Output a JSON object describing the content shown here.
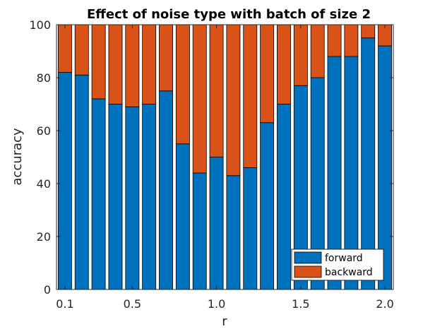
{
  "chart_data": {
    "type": "bar",
    "stacked": true,
    "title": "Effect of noise type with batch of size 2",
    "xlabel": "r",
    "ylabel": "accuracy",
    "x": [
      0.1,
      0.2,
      0.3,
      0.4,
      0.5,
      0.6,
      0.7,
      0.8,
      0.9,
      1.0,
      1.1,
      1.2,
      1.3,
      1.4,
      1.5,
      1.6,
      1.7,
      1.8,
      1.9,
      2.0
    ],
    "xlim": [
      0.05,
      2.05
    ],
    "ylim": [
      0,
      100
    ],
    "xticks": [
      "0.1",
      "0.5",
      "1.0",
      "1.5",
      "2.0"
    ],
    "xtick_values": [
      0.1,
      0.5,
      1.0,
      1.5,
      2.0
    ],
    "yticks": [
      "0",
      "20",
      "40",
      "60",
      "80",
      "100"
    ],
    "ytick_values": [
      0,
      20,
      40,
      60,
      80,
      100
    ],
    "series": [
      {
        "name": "forward",
        "color": "#0072BD",
        "values": [
          82,
          81,
          72,
          70,
          69,
          70,
          75,
          55,
          44,
          50,
          43,
          46,
          63,
          70,
          77,
          80,
          88,
          88,
          95,
          92
        ]
      },
      {
        "name": "backward",
        "color": "#D95319",
        "values": [
          18,
          19,
          28,
          30,
          31,
          30,
          25,
          45,
          56,
          50,
          57,
          54,
          37,
          30,
          23,
          20,
          12,
          12,
          5,
          8
        ]
      }
    ],
    "legend": "bottom-right",
    "grid": false
  }
}
